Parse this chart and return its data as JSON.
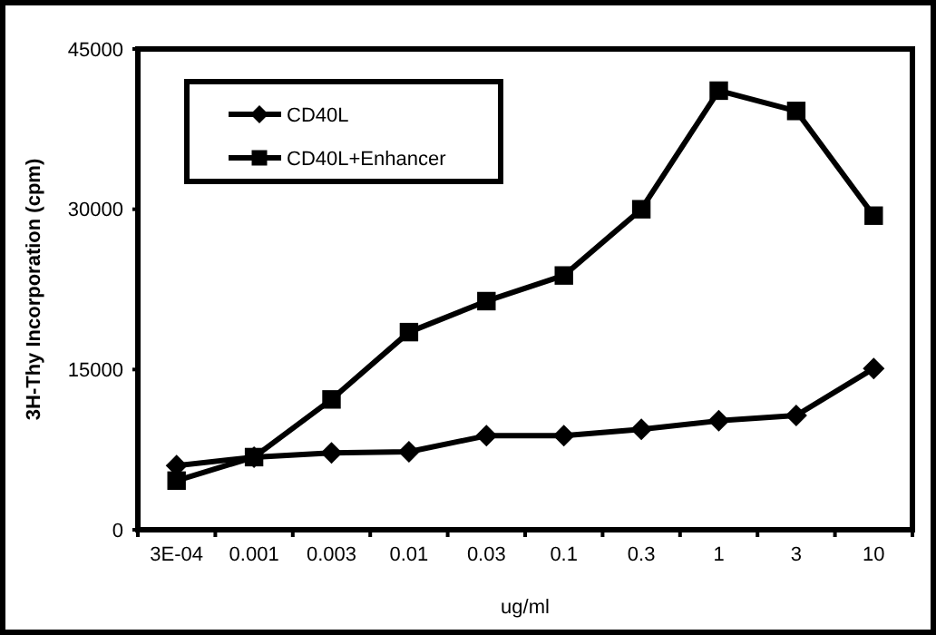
{
  "chart_data": {
    "type": "line",
    "xlabel": "ug/ml",
    "ylabel": "3H-Thy Incorporation (cpm)",
    "categories": [
      "3E-04",
      "0.001",
      "0.003",
      "0.01",
      "0.03",
      "0.1",
      "0.3",
      "1",
      "3",
      "10"
    ],
    "series": [
      {
        "name": "CD40L",
        "color": "#000000",
        "marker": "diamond",
        "values": [
          6000,
          6800,
          7200,
          7300,
          8800,
          8800,
          9400,
          10200,
          10700,
          15100
        ]
      },
      {
        "name": "CD40L+Enhancer",
        "color": "#000000",
        "marker": "square",
        "values": [
          4600,
          6800,
          12200,
          18500,
          21400,
          23800,
          30000,
          41100,
          39200,
          29400
        ]
      }
    ],
    "ylim": [
      0,
      45000
    ],
    "yticks": [
      0,
      15000,
      30000,
      45000
    ],
    "grid": false,
    "legend": "top left",
    "line_style": "solid"
  }
}
